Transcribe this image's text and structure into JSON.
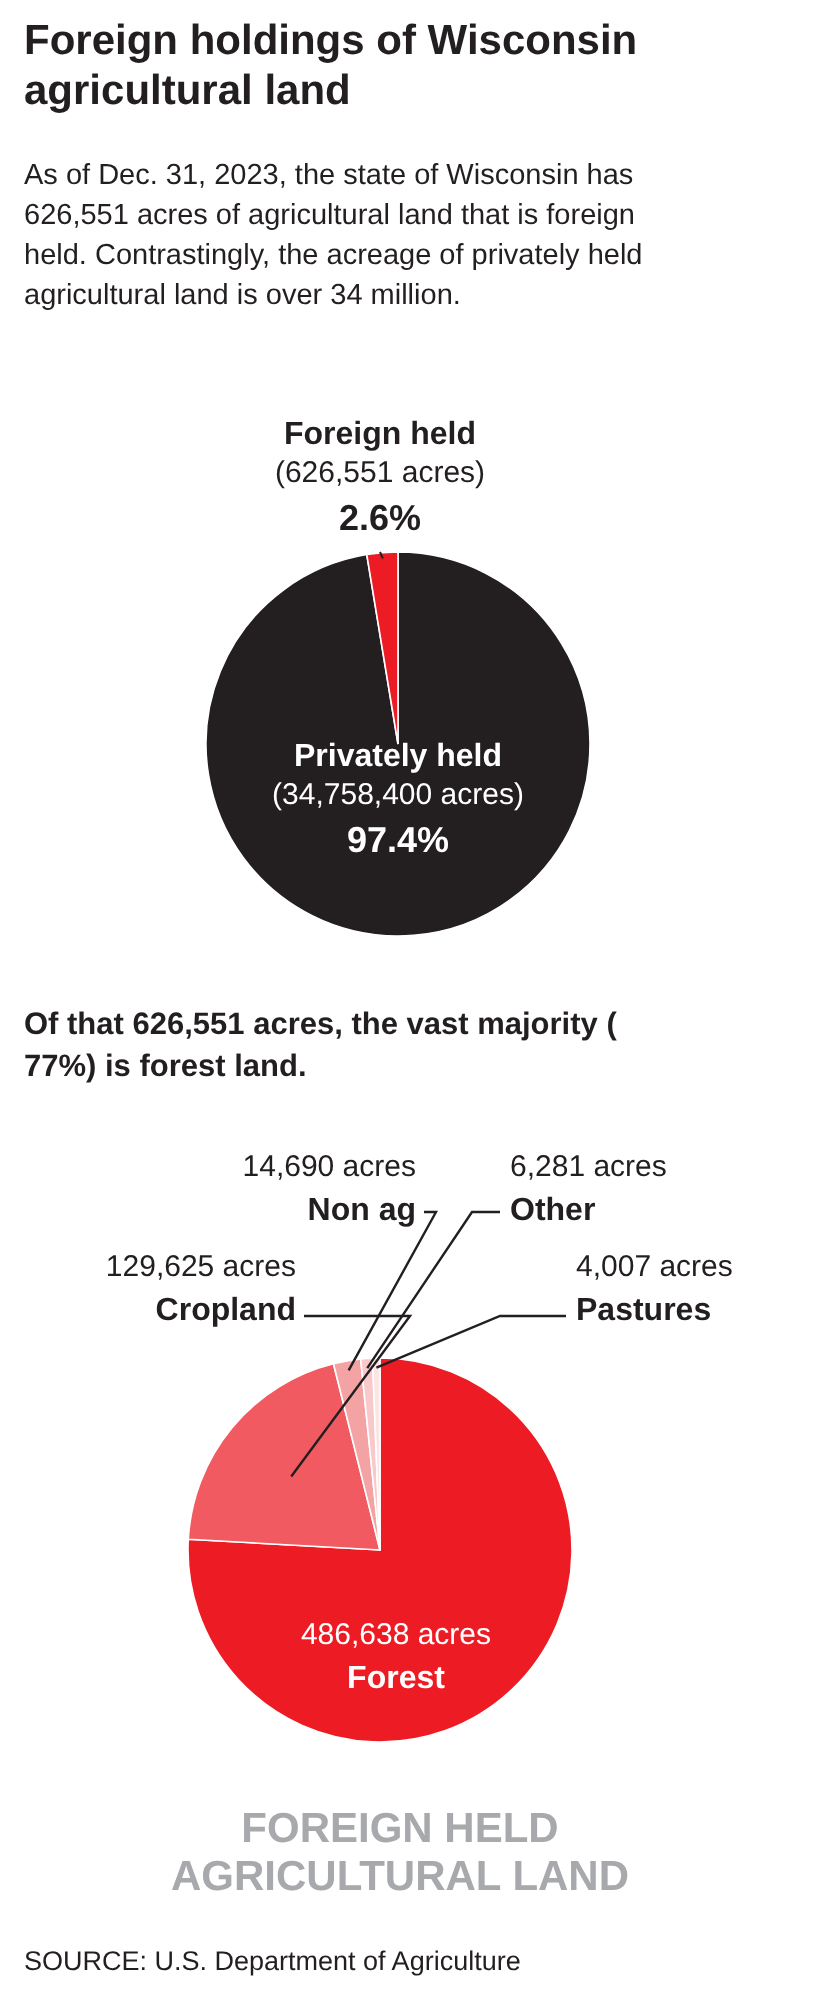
{
  "chart_data": [
    {
      "type": "pie",
      "title": "Foreign holdings of Wisconsin agricultural land",
      "subtitle": "As of Dec. 31, 2023, the state of Wisconsin has 626,551 acres of agricultural land that is foreign held. Contrastingly, the acreage of privately held agricultural land is over 34 million.",
      "categories": [
        "Privately held",
        "Foreign held"
      ],
      "values": [
        97.4,
        2.6
      ],
      "colors": [
        "#231f20",
        "#ed1c24"
      ],
      "value_labels": [
        "97.4%",
        "2.6%"
      ],
      "annotations": [
        "(34,758,400 acres)",
        "(626,551 acres)"
      ]
    },
    {
      "type": "pie",
      "title": "Of that 626,551 acres, the vast majority ( 77%) is forest land.",
      "categories": [
        "Forest",
        "Cropland",
        "Non ag",
        "Other",
        "Pastures"
      ],
      "values": [
        486638,
        129625,
        14690,
        6281,
        4007
      ],
      "colors": [
        "#ed1c24",
        "#f05a60",
        "#f4a3a5",
        "#f9c9ca",
        "#fce4e4"
      ],
      "value_labels": [
        "486,638 acres",
        "129,625 acres",
        "14,690 acres",
        "6,281 acres",
        "4,007 acres"
      ],
      "annotations": [
        "FOREIGN HELD AGRICULTURAL LAND",
        "SOURCE: U.S. Department of Agriculture"
      ]
    }
  ]
}
